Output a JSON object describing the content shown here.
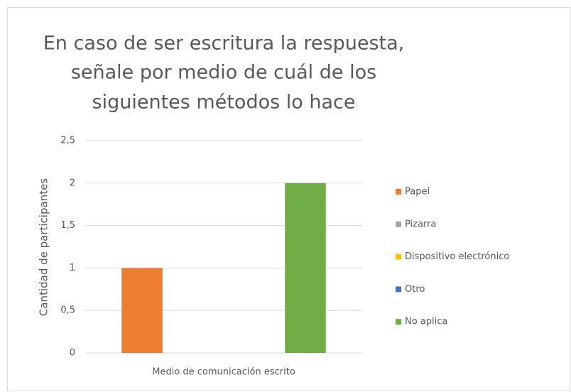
{
  "chart_data": {
    "type": "bar",
    "title": [
      "En caso de ser escritura la respuesta,",
      "señale por medio de cuál de los",
      "siguientes métodos lo hace"
    ],
    "y_label": "Cantidad de participantes",
    "categories": [
      "Medio de comunicación escrito"
    ],
    "series": [
      {
        "name": "Papel",
        "color": "#ed7d31",
        "values": [
          1
        ]
      },
      {
        "name": "Pizarra",
        "color": "#a5a5a5",
        "values": [
          0
        ]
      },
      {
        "name": "Dispositivo electrónico",
        "color": "#ffc000",
        "values": [
          0
        ]
      },
      {
        "name": "Otro",
        "color": "#4472c4",
        "values": [
          0
        ]
      },
      {
        "name": "No aplica",
        "color": "#70ad47",
        "values": [
          2
        ]
      }
    ],
    "ylim": [
      0,
      2.5
    ],
    "yticks": [
      0,
      {
        "value": 0.5,
        "label": "0,5"
      },
      1,
      {
        "value": 1.5,
        "label": "1,5"
      },
      2,
      {
        "value": 2.5,
        "label": "2,5"
      }
    ],
    "grid": true,
    "legend": "right"
  }
}
